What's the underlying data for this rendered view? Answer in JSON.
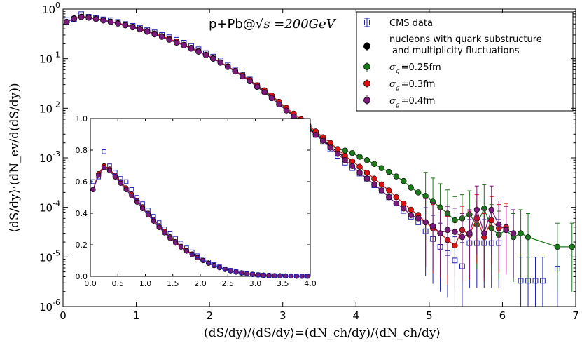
{
  "chart_data": {
    "type": "scatter",
    "title": "p+Pb@√s =200GeV",
    "title_plain": "p+Pb@",
    "title_math": "√s =200GeV",
    "xlabel": "(dS/dy)/⟨dS/dy⟩=(dN_ch/dy)/⟨dN_ch/dy⟩",
    "ylabel": "⟨dS/dy⟩·(dN_ev/d(dS/dy))",
    "xlim": [
      0,
      7
    ],
    "ylim": [
      1e-06,
      1
    ],
    "yscale": "log",
    "x_ticks": [
      "0",
      "1",
      "2",
      "3",
      "4",
      "5",
      "6",
      "7"
    ],
    "y_ticks": [
      "10^0",
      "10^-1",
      "10^-2",
      "10^-3",
      "10^-4",
      "10^-5",
      "10^-6"
    ],
    "legend_position": "top-right",
    "series": [
      {
        "name": "CMS data",
        "color": "#1f1fb4",
        "marker": "open-square",
        "x": [
          0.05,
          0.15,
          0.25,
          0.35,
          0.45,
          0.55,
          0.65,
          0.75,
          0.85,
          0.95,
          1.05,
          1.15,
          1.25,
          1.35,
          1.45,
          1.55,
          1.65,
          1.75,
          1.85,
          1.95,
          2.05,
          2.15,
          2.25,
          2.35,
          2.45,
          2.55,
          2.65,
          2.75,
          2.85,
          2.95,
          3.05,
          3.15,
          3.25,
          3.35,
          3.45,
          3.55,
          3.65,
          3.75,
          3.85,
          3.95,
          4.05,
          4.15,
          4.25,
          4.35,
          4.45,
          4.55,
          4.65,
          4.75,
          4.85,
          4.95,
          5.05,
          5.15,
          5.25,
          5.35,
          5.45,
          5.55,
          5.65,
          5.75,
          5.85,
          5.95,
          6.25,
          6.35,
          6.45,
          6.55,
          6.75
        ],
        "y": [
          0.6,
          0.63,
          0.79,
          0.7,
          0.66,
          0.62,
          0.6,
          0.55,
          0.5,
          0.46,
          0.42,
          0.38,
          0.34,
          0.3,
          0.27,
          0.24,
          0.21,
          0.18,
          0.155,
          0.13,
          0.11,
          0.092,
          0.075,
          0.06,
          0.048,
          0.038,
          0.029,
          0.022,
          0.017,
          0.0125,
          0.0095,
          0.007,
          0.0052,
          0.0038,
          0.0029,
          0.0021,
          0.0015,
          0.0011,
          0.0008,
          0.00062,
          0.00048,
          0.00038,
          0.00028,
          0.00022,
          0.00016,
          0.00012,
          8.5e-05,
          6.5e-05,
          5e-05,
          3.3e-05,
          2.3e-05,
          1.6e-05,
          1.2e-05,
          8.5e-06,
          6.5e-06,
          1.9e-05,
          1.9e-05,
          1.9e-05,
          1.9e-05,
          1.9e-05,
          3.3e-06,
          3.3e-06,
          3.3e-06,
          3.3e-06,
          5.8e-06
        ]
      },
      {
        "name": "nucleons with quark substructure and multiplicity fluctuations",
        "color": "#000000",
        "marker": "filled-circle",
        "x": [
          0.05,
          0.15,
          0.25,
          0.35,
          0.45,
          0.55,
          0.65,
          0.75,
          0.85,
          0.95,
          1.05,
          1.15,
          1.25,
          1.35,
          1.45,
          1.55,
          1.65,
          1.75,
          1.85,
          1.95,
          2.05,
          2.15,
          2.25,
          2.35,
          2.45,
          2.55,
          2.65,
          2.75,
          2.85,
          2.95,
          3.05,
          3.15,
          3.25,
          3.35,
          3.45,
          3.55,
          3.65,
          3.75,
          3.85
        ],
        "y": [
          0.55,
          0.65,
          0.7,
          0.68,
          0.64,
          0.6,
          0.56,
          0.52,
          0.48,
          0.44,
          0.4,
          0.36,
          0.32,
          0.28,
          0.25,
          0.22,
          0.19,
          0.165,
          0.14,
          0.12,
          0.1,
          0.083,
          0.068,
          0.055,
          0.044,
          0.035,
          0.027,
          0.021,
          0.016,
          0.012,
          0.0092,
          0.007,
          0.0053,
          0.004,
          0.003,
          0.0023,
          0.0017,
          0.0013,
          0.001
        ]
      },
      {
        "name": "σ_g =0.25fm",
        "color": "#1a7a1a",
        "marker": "filled-circle",
        "x": [
          0.05,
          0.15,
          0.25,
          0.35,
          0.45,
          0.55,
          0.65,
          0.75,
          0.85,
          0.95,
          1.05,
          1.15,
          1.25,
          1.35,
          1.45,
          1.55,
          1.65,
          1.75,
          1.85,
          1.95,
          2.05,
          2.15,
          2.25,
          2.35,
          2.45,
          2.55,
          2.65,
          2.75,
          2.85,
          2.95,
          3.05,
          3.15,
          3.25,
          3.35,
          3.45,
          3.55,
          3.65,
          3.75,
          3.85,
          3.95,
          4.05,
          4.15,
          4.25,
          4.35,
          4.45,
          4.55,
          4.65,
          4.75,
          4.85,
          4.95,
          5.05,
          5.15,
          5.25,
          5.35,
          5.45,
          5.55,
          5.65,
          5.75,
          5.85,
          5.95,
          6.05,
          6.15,
          6.25,
          6.35,
          6.75,
          6.95
        ],
        "y": [
          0.55,
          0.64,
          0.69,
          0.67,
          0.63,
          0.59,
          0.55,
          0.51,
          0.47,
          0.43,
          0.39,
          0.35,
          0.31,
          0.28,
          0.245,
          0.215,
          0.188,
          0.163,
          0.14,
          0.12,
          0.1,
          0.084,
          0.069,
          0.056,
          0.045,
          0.036,
          0.028,
          0.022,
          0.017,
          0.013,
          0.0097,
          0.0073,
          0.0055,
          0.0042,
          0.0032,
          0.0024,
          0.0018,
          0.0015,
          0.0014,
          0.00125,
          0.00105,
          0.0009,
          0.00075,
          0.00062,
          0.00052,
          0.00042,
          0.00034,
          0.00025,
          0.0002,
          0.00017,
          0.00013,
          0.0001,
          7.5e-05,
          5.5e-05,
          6e-05,
          7.2e-05,
          4.5e-05,
          9.5e-05,
          3.8e-05,
          2.8e-05,
          3.5e-05,
          2.5e-05,
          3e-05,
          2.5e-05,
          1.6e-05,
          1.6e-05
        ]
      },
      {
        "name": "σ_g =0.3fm",
        "color": "#dd1111",
        "marker": "filled-circle",
        "x": [
          0.05,
          0.15,
          0.25,
          0.35,
          0.45,
          0.55,
          0.65,
          0.75,
          0.85,
          0.95,
          1.05,
          1.15,
          1.25,
          1.35,
          1.45,
          1.55,
          1.65,
          1.75,
          1.85,
          1.95,
          2.05,
          2.15,
          2.25,
          2.35,
          2.45,
          2.55,
          2.65,
          2.75,
          2.85,
          2.95,
          3.05,
          3.15,
          3.25,
          3.35,
          3.45,
          3.55,
          3.65,
          3.75,
          3.85,
          3.95,
          4.05,
          4.15,
          4.25,
          4.35,
          4.45,
          4.55,
          4.65,
          4.75,
          4.85,
          4.95,
          5.05,
          5.15,
          5.25,
          5.35,
          5.45,
          5.55,
          5.65,
          5.75,
          5.85,
          5.95,
          6.05
        ],
        "y": [
          0.55,
          0.65,
          0.7,
          0.68,
          0.64,
          0.6,
          0.56,
          0.52,
          0.48,
          0.44,
          0.4,
          0.36,
          0.32,
          0.285,
          0.25,
          0.22,
          0.19,
          0.165,
          0.142,
          0.121,
          0.102,
          0.085,
          0.07,
          0.057,
          0.046,
          0.037,
          0.029,
          0.023,
          0.018,
          0.0135,
          0.0102,
          0.0078,
          0.006,
          0.0045,
          0.0034,
          0.0026,
          0.002,
          0.0015,
          0.0011,
          0.00085,
          0.00066,
          0.0005,
          0.00038,
          0.00029,
          0.00022,
          0.00016,
          0.00012,
          9e-05,
          7e-05,
          5e-05,
          3.8e-05,
          3e-05,
          2.2e-05,
          1.7e-05,
          3.5e-05,
          2.8e-05,
          6e-05,
          2.5e-05,
          5.5e-05,
          3.8e-05,
          4e-05
        ]
      },
      {
        "name": "σ_g =0.4fm",
        "color": "#7a1a7a",
        "marker": "filled-circle",
        "x": [
          0.05,
          0.15,
          0.25,
          0.35,
          0.45,
          0.55,
          0.65,
          0.75,
          0.85,
          0.95,
          1.05,
          1.15,
          1.25,
          1.35,
          1.45,
          1.55,
          1.65,
          1.75,
          1.85,
          1.95,
          2.05,
          2.15,
          2.25,
          2.35,
          2.45,
          2.55,
          2.65,
          2.75,
          2.85,
          2.95,
          3.05,
          3.15,
          3.25,
          3.35,
          3.45,
          3.55,
          3.65,
          3.75,
          3.85,
          3.95,
          4.05,
          4.15,
          4.25,
          4.35,
          4.45,
          4.55,
          4.65,
          4.75,
          4.85,
          4.95,
          5.05,
          5.15,
          5.25,
          5.35,
          5.45,
          5.55,
          5.65,
          5.75,
          5.85,
          5.95,
          6.05,
          6.15
        ],
        "y": [
          0.55,
          0.64,
          0.69,
          0.67,
          0.63,
          0.59,
          0.55,
          0.51,
          0.47,
          0.43,
          0.39,
          0.35,
          0.31,
          0.275,
          0.24,
          0.21,
          0.185,
          0.16,
          0.138,
          0.118,
          0.1,
          0.083,
          0.068,
          0.055,
          0.044,
          0.035,
          0.027,
          0.021,
          0.016,
          0.012,
          0.009,
          0.0068,
          0.0051,
          0.0038,
          0.0029,
          0.0022,
          0.0016,
          0.0012,
          0.0009,
          0.00068,
          0.0005,
          0.00038,
          0.00029,
          0.00022,
          0.00016,
          0.00012,
          9.5e-05,
          7e-05,
          6e-05,
          5e-05,
          4.2e-05,
          3e-05,
          3.5e-05,
          3.2e-05,
          2.5e-05,
          3e-05,
          9e-05,
          3e-05,
          9e-05,
          4.5e-05,
          3.5e-05,
          3e-05
        ]
      }
    ],
    "inset": {
      "xlim": [
        0,
        4
      ],
      "ylim": [
        0,
        1
      ],
      "yscale": "linear",
      "x_ticks": [
        "0.0",
        "0.5",
        "1.0",
        "1.5",
        "2.0",
        "2.5",
        "3.0",
        "3.5",
        "4.0"
      ],
      "y_ticks": [
        "0.0",
        "0.2",
        "0.4",
        "0.6",
        "0.8",
        "1.0"
      ]
    },
    "legend": [
      {
        "label": "CMS data"
      },
      {
        "label": "nucleons with quark substructure"
      },
      {
        "label": "and multiplicity fluctuations"
      },
      {
        "label_prefix": "σ",
        "label_sub": "g",
        "label_suffix": "=0.25fm"
      },
      {
        "label_prefix": "σ",
        "label_sub": "g",
        "label_suffix": "=0.3fm"
      },
      {
        "label_prefix": "σ",
        "label_sub": "g",
        "label_suffix": "=0.4fm"
      }
    ]
  }
}
